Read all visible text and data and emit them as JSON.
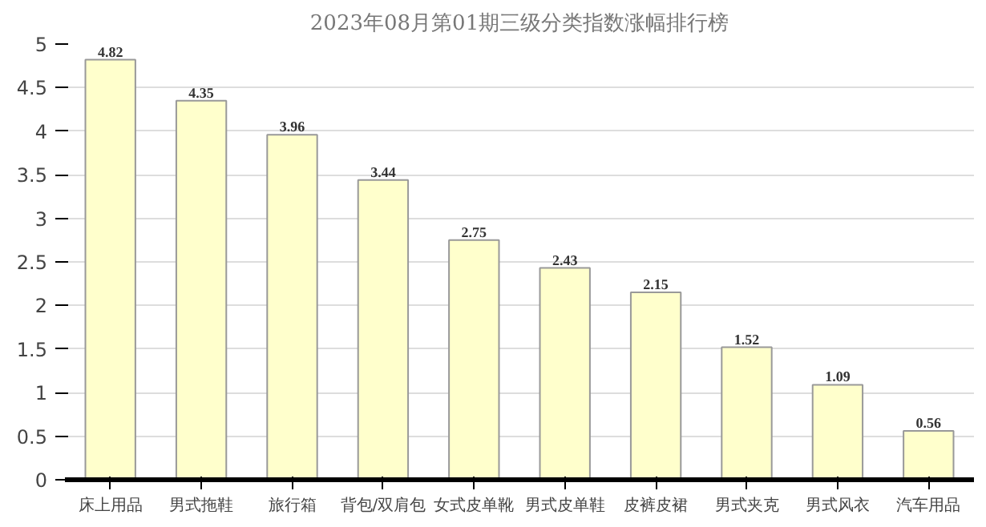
{
  "chart_data": {
    "type": "bar",
    "title": "2023年08月第01期三级分类指数涨幅排行榜",
    "categories": [
      "床上用品",
      "男式拖鞋",
      "旅行箱",
      "背包/双肩包",
      "女式皮单靴",
      "男式皮单鞋",
      "皮裤皮裙",
      "男式夹克",
      "男式风衣",
      "汽车用品"
    ],
    "values": [
      4.82,
      4.35,
      3.96,
      3.44,
      2.75,
      2.43,
      2.15,
      1.52,
      1.09,
      0.56
    ],
    "color": "#ffffcc",
    "data_labels": true,
    "grid": "y",
    "ylim": [
      0,
      5
    ],
    "yticks": [
      0,
      0.5,
      1,
      1.5,
      2,
      2.5,
      3,
      3.5,
      4,
      4.5,
      5
    ]
  }
}
